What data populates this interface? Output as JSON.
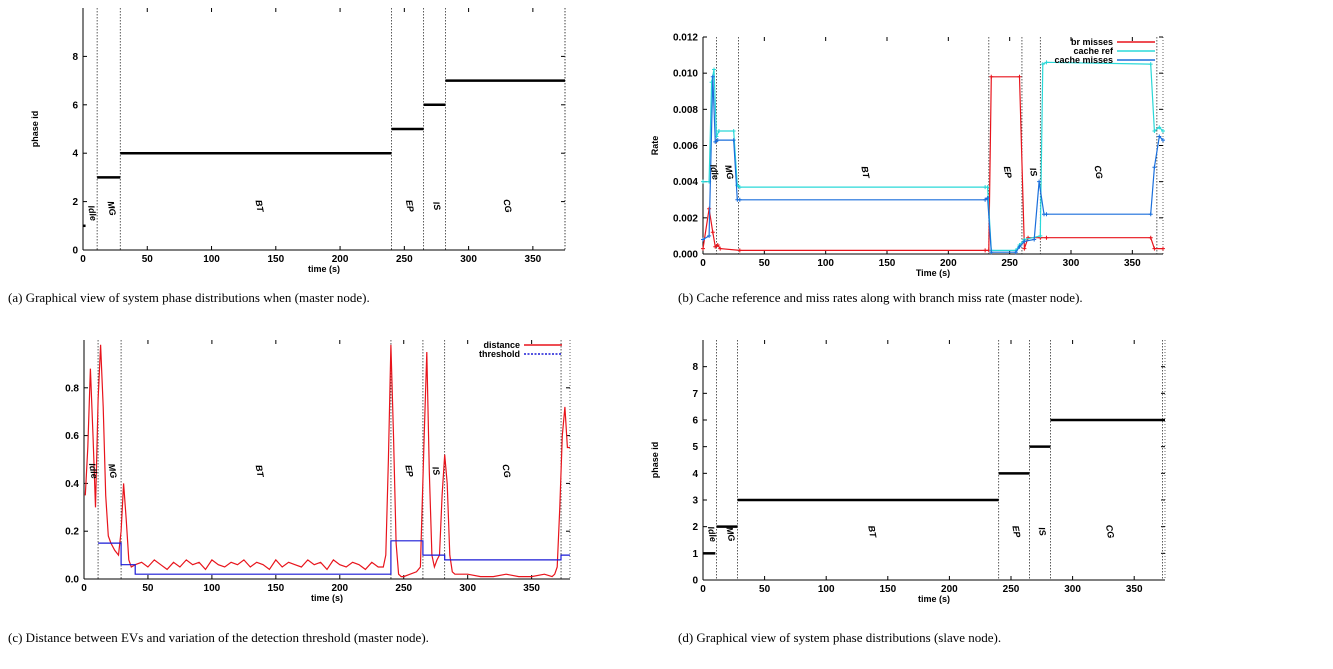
{
  "captions": {
    "a": "(a) Graphical view of system phase distributions when (master node).",
    "b": "(b) Cache reference and miss rates along with branch miss rate (master node).",
    "c": "(c) Distance between EVs and variation of the detection threshold (master node).",
    "d": "(d) Graphical view of system phase distributions (slave node)."
  },
  "chart_data": [
    {
      "id": "a",
      "type": "line",
      "title": "",
      "xlabel": "time (s)",
      "ylabel": "phase id",
      "xlim": [
        0,
        375
      ],
      "ylim": [
        0,
        10
      ],
      "xticks": [
        0,
        50,
        100,
        150,
        200,
        250,
        300,
        350
      ],
      "yticks": [
        0,
        2,
        4,
        6,
        8
      ],
      "grid": false,
      "phase_boundaries": [
        11,
        29,
        240,
        265,
        282,
        375
      ],
      "segments": [
        [
          0,
          2,
          1
        ],
        [
          11,
          29,
          3
        ],
        [
          29,
          240,
          4
        ],
        [
          240,
          265,
          5
        ],
        [
          265,
          282,
          6
        ],
        [
          282,
          375,
          7
        ]
      ],
      "labels": [
        {
          "text": "Idle",
          "x": 5,
          "y": 1.5
        },
        {
          "text": "MG",
          "x": 20,
          "y": 1.7
        },
        {
          "text": "BT",
          "x": 135,
          "y": 1.8
        },
        {
          "text": "EP",
          "x": 252,
          "y": 1.8
        },
        {
          "text": "IS",
          "x": 273,
          "y": 1.8
        },
        {
          "text": "CG",
          "x": 328,
          "y": 1.8
        }
      ]
    },
    {
      "id": "b",
      "type": "line",
      "title": "",
      "xlabel": "Time (s)",
      "ylabel": "Rate",
      "xlim": [
        0,
        375
      ],
      "ylim": [
        0,
        0.012
      ],
      "xticks": [
        0,
        50,
        100,
        150,
        200,
        250,
        300,
        350
      ],
      "yticks": [
        0,
        0.002,
        0.004,
        0.006,
        0.008,
        0.01,
        0.012
      ],
      "grid": false,
      "legend": "top-right",
      "phase_boundaries": [
        11,
        29,
        233,
        260,
        275,
        370
      ],
      "series": [
        {
          "name": "br misses",
          "color": "#e8141c",
          "x": [
            0,
            5,
            8,
            10,
            12,
            14,
            30,
            230,
            233,
            235,
            258,
            262,
            265,
            275,
            280,
            365,
            368,
            375
          ],
          "y": [
            0.0003,
            0.0025,
            0.0012,
            0.0004,
            0.0005,
            0.0003,
            0.0002,
            0.0002,
            0.0002,
            0.0098,
            0.0098,
            0.0003,
            0.0009,
            0.0009,
            0.0009,
            0.0009,
            0.0003,
            0.0003
          ]
        },
        {
          "name": "cache ref",
          "color": "#2ad8d8",
          "x": [
            0,
            5,
            7,
            9,
            11,
            13,
            25,
            28,
            30,
            230,
            232,
            235,
            255,
            258,
            262,
            275,
            277,
            280,
            365,
            368,
            372,
            375
          ],
          "y": [
            0.004,
            0.004,
            0.0095,
            0.0102,
            0.0065,
            0.0068,
            0.0068,
            0.0038,
            0.0037,
            0.0037,
            0.0037,
            0.0002,
            0.0002,
            0.0005,
            0.0008,
            0.001,
            0.0105,
            0.0106,
            0.0105,
            0.0068,
            0.007,
            0.0068
          ]
        },
        {
          "name": "cache misses",
          "color": "#1a6fdc",
          "x": [
            0,
            5,
            8,
            10,
            12,
            25,
            28,
            30,
            230,
            232,
            235,
            255,
            258,
            262,
            270,
            274,
            278,
            280,
            365,
            368,
            372,
            375
          ],
          "y": [
            0.0008,
            0.001,
            0.0098,
            0.0062,
            0.0063,
            0.0063,
            0.003,
            0.003,
            0.003,
            0.0031,
            0.0001,
            0.0001,
            0.0004,
            0.0007,
            0.0008,
            0.004,
            0.0022,
            0.0022,
            0.0022,
            0.0048,
            0.0065,
            0.0063
          ]
        }
      ],
      "labels": [
        {
          "text": "Idle",
          "x": 7,
          "y": 0.0045
        },
        {
          "text": "MG",
          "x": 19,
          "y": 0.0045
        },
        {
          "text": "BT",
          "x": 130,
          "y": 0.0045
        },
        {
          "text": "EP",
          "x": 246,
          "y": 0.0045
        },
        {
          "text": "IS",
          "x": 267,
          "y": 0.0045
        },
        {
          "text": "CG",
          "x": 320,
          "y": 0.0045
        }
      ]
    },
    {
      "id": "c",
      "type": "line",
      "title": "",
      "xlabel": "time (s)",
      "ylabel": "",
      "xlim": [
        0,
        380
      ],
      "ylim": [
        0,
        1
      ],
      "xticks": [
        0,
        50,
        100,
        150,
        200,
        250,
        300,
        350
      ],
      "yticks": [
        0,
        0.2,
        0.4,
        0.6,
        0.8
      ],
      "grid": false,
      "legend": "top-right",
      "phase_boundaries": [
        11,
        29,
        240,
        265,
        282,
        373
      ],
      "series": [
        {
          "name": "distance",
          "color": "#e8141c",
          "x": [
            1,
            3,
            5,
            7,
            9,
            11,
            13,
            15,
            17,
            19,
            21,
            24,
            27,
            29,
            31,
            33,
            35,
            37,
            40,
            45,
            50,
            55,
            60,
            65,
            70,
            75,
            80,
            85,
            90,
            95,
            100,
            105,
            110,
            115,
            120,
            125,
            130,
            135,
            140,
            145,
            150,
            155,
            160,
            165,
            170,
            175,
            180,
            185,
            190,
            195,
            200,
            205,
            210,
            215,
            220,
            225,
            230,
            234,
            236,
            238,
            240,
            242,
            244,
            246,
            248,
            250,
            255,
            260,
            263,
            266,
            268,
            270,
            272,
            274,
            276,
            278,
            280,
            282,
            284,
            286,
            288,
            290,
            295,
            300,
            310,
            320,
            330,
            340,
            350,
            360,
            366,
            368,
            370,
            372,
            374,
            376,
            378,
            380
          ],
          "y": [
            0.35,
            0.55,
            0.88,
            0.6,
            0.3,
            0.75,
            0.98,
            0.72,
            0.35,
            0.18,
            0.15,
            0.12,
            0.1,
            0.2,
            0.4,
            0.25,
            0.08,
            0.05,
            0.06,
            0.07,
            0.05,
            0.08,
            0.06,
            0.04,
            0.07,
            0.05,
            0.08,
            0.06,
            0.07,
            0.04,
            0.08,
            0.06,
            0.05,
            0.07,
            0.06,
            0.08,
            0.05,
            0.07,
            0.06,
            0.04,
            0.08,
            0.05,
            0.07,
            0.06,
            0.05,
            0.08,
            0.06,
            0.07,
            0.04,
            0.08,
            0.06,
            0.05,
            0.07,
            0.06,
            0.04,
            0.07,
            0.05,
            0.05,
            0.1,
            0.5,
            0.98,
            0.6,
            0.15,
            0.02,
            0.01,
            0.01,
            0.02,
            0.03,
            0.05,
            0.6,
            0.95,
            0.45,
            0.1,
            0.05,
            0.08,
            0.1,
            0.35,
            0.52,
            0.4,
            0.1,
            0.03,
            0.02,
            0.02,
            0.02,
            0.01,
            0.01,
            0.02,
            0.01,
            0.01,
            0.02,
            0.01,
            0.02,
            0.05,
            0.3,
            0.6,
            0.72,
            0.55,
            0.55
          ]
        },
        {
          "name": "threshold",
          "color": "#1a1ad6",
          "x": [
            11,
            29,
            29,
            40,
            40,
            240,
            240,
            265,
            265,
            282,
            282,
            373,
            373,
            380
          ],
          "y": [
            0.15,
            0.15,
            0.06,
            0.06,
            0.02,
            0.02,
            0.16,
            0.16,
            0.1,
            0.1,
            0.08,
            0.08,
            0.1,
            0.1
          ]
        }
      ],
      "labels": [
        {
          "text": "Idle",
          "x": 5,
          "y": 0.45
        },
        {
          "text": "MG",
          "x": 20,
          "y": 0.45
        },
        {
          "text": "BT",
          "x": 135,
          "y": 0.45
        },
        {
          "text": "EP",
          "x": 252,
          "y": 0.45
        },
        {
          "text": "IS",
          "x": 273,
          "y": 0.45
        },
        {
          "text": "CG",
          "x": 328,
          "y": 0.45
        }
      ]
    },
    {
      "id": "d",
      "type": "line",
      "title": "",
      "xlabel": "time (s)",
      "ylabel": "phase id",
      "xlim": [
        0,
        375
      ],
      "ylim": [
        0,
        9
      ],
      "xticks": [
        0,
        50,
        100,
        150,
        200,
        250,
        300,
        350
      ],
      "yticks": [
        0,
        1,
        2,
        3,
        4,
        5,
        6,
        7,
        8
      ],
      "grid": false,
      "phase_boundaries": [
        11,
        28,
        240,
        265,
        282,
        373
      ],
      "segments": [
        [
          0,
          10,
          1
        ],
        [
          11,
          28,
          2
        ],
        [
          28,
          240,
          3
        ],
        [
          240,
          265,
          4
        ],
        [
          265,
          282,
          5
        ],
        [
          282,
          375,
          6
        ]
      ],
      "labels": [
        {
          "text": "Idle",
          "x": 5,
          "y": 1.7
        },
        {
          "text": "MG",
          "x": 20,
          "y": 1.7
        },
        {
          "text": "BT",
          "x": 135,
          "y": 1.8
        },
        {
          "text": "EP",
          "x": 252,
          "y": 1.8
        },
        {
          "text": "IS",
          "x": 273,
          "y": 1.8
        },
        {
          "text": "CG",
          "x": 328,
          "y": 1.8
        }
      ]
    }
  ]
}
